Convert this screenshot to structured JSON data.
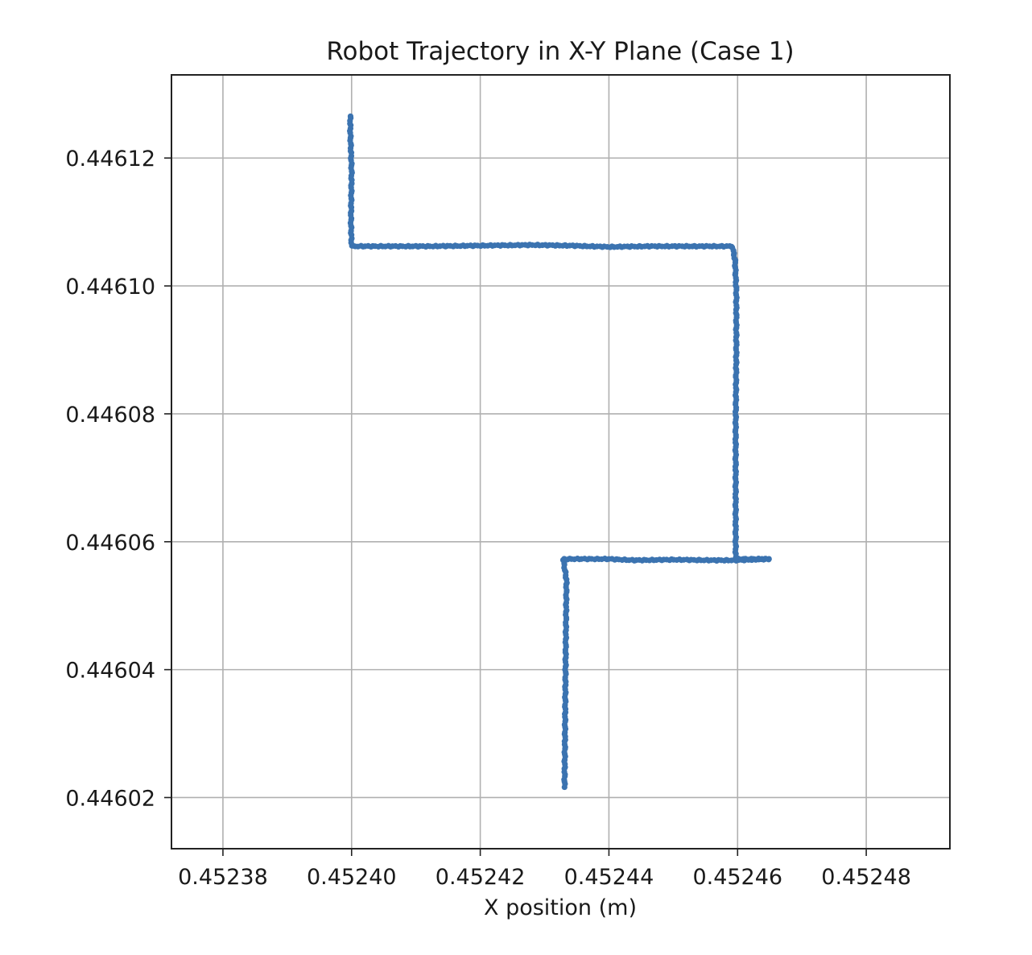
{
  "chart_data": {
    "type": "scatter",
    "title": "Robot Trajectory in X-Y Plane (Case 1)",
    "xlabel": "X position (m)",
    "ylabel": "",
    "xlim": [
      0.452372,
      0.452493
    ],
    "ylim": [
      0.446012,
      0.446133
    ],
    "xticks": [
      0.45238,
      0.4524,
      0.45242,
      0.45244,
      0.45246,
      0.45248
    ],
    "xtick_labels": [
      "0.45238",
      "0.45240",
      "0.45242",
      "0.45244",
      "0.45246",
      "0.45248"
    ],
    "yticks": [
      0.44602,
      0.44604,
      0.44606,
      0.44608,
      0.4461,
      0.44612
    ],
    "ytick_labels": [
      "0.44602",
      "0.44604",
      "0.44606",
      "0.44608",
      "0.44610",
      "0.44612"
    ],
    "grid": true,
    "marker_color": "#3b73b0",
    "path": [
      [
        0.4524331,
        0.4460217
      ],
      [
        0.4524332,
        0.446033
      ],
      [
        0.4524333,
        0.446045
      ],
      [
        0.4524334,
        0.446054
      ],
      [
        0.4524329,
        0.4460573
      ],
      [
        0.45244,
        0.4460573
      ],
      [
        0.452444,
        0.4460571
      ],
      [
        0.45245,
        0.4460572
      ],
      [
        0.452456,
        0.4460571
      ],
      [
        0.45246,
        0.4460571
      ],
      [
        0.452465,
        0.4460573
      ],
      [
        0.4524597,
        0.4460573
      ],
      [
        0.4524597,
        0.446066
      ],
      [
        0.4524597,
        0.446078
      ],
      [
        0.4524598,
        0.44609
      ],
      [
        0.4524598,
        0.446099
      ],
      [
        0.4524596,
        0.446104
      ],
      [
        0.4524592,
        0.4461062
      ],
      [
        0.452453,
        0.4461062
      ],
      [
        0.452446,
        0.4461062
      ],
      [
        0.45244,
        0.4461061
      ],
      [
        0.452434,
        0.4461063
      ],
      [
        0.452428,
        0.4461064
      ],
      [
        0.45242,
        0.4461063
      ],
      [
        0.452412,
        0.4461062
      ],
      [
        0.4524,
        0.4461062
      ],
      [
        0.4523999,
        0.44611
      ],
      [
        0.4524,
        0.446118
      ],
      [
        0.4523998,
        0.446124
      ],
      [
        0.4523998,
        0.4461266
      ]
    ],
    "point_count": 520
  }
}
